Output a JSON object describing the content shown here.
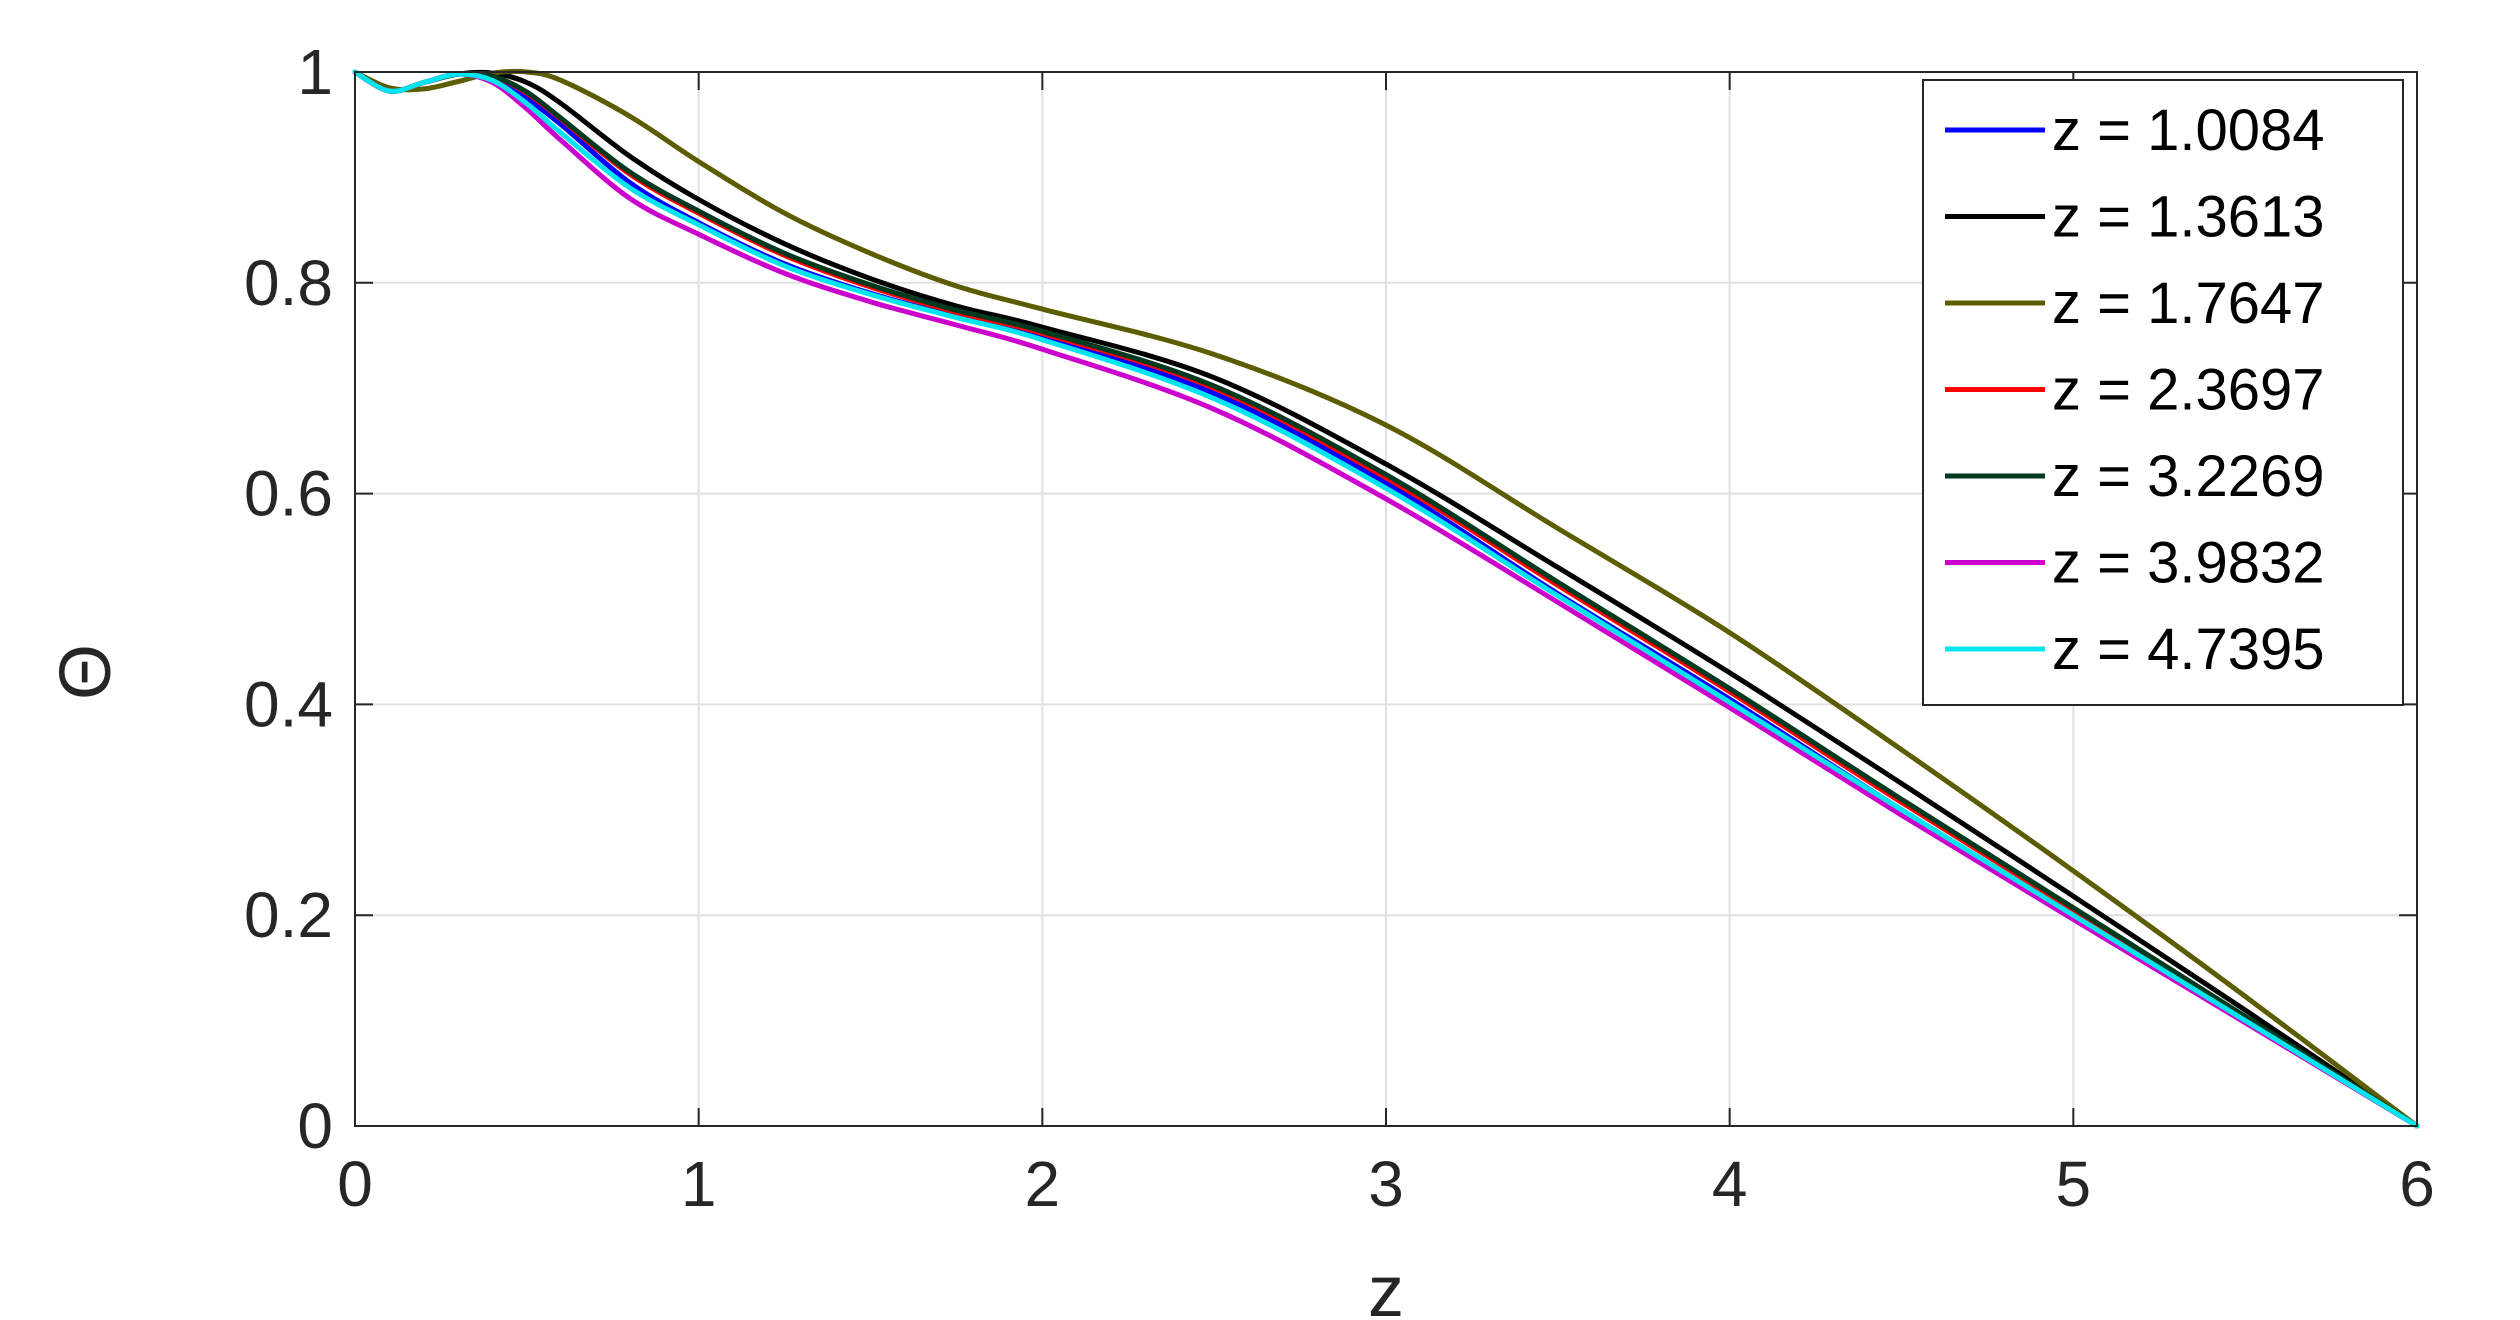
{
  "chart_data": {
    "type": "line",
    "title": "",
    "xlabel": "z",
    "ylabel": "Θ",
    "xlim": [
      0,
      6
    ],
    "ylim": [
      0,
      1
    ],
    "xticks": [
      "0",
      "1",
      "2",
      "3",
      "4",
      "5",
      "6"
    ],
    "yticks": [
      "0",
      "0.2",
      "0.4",
      "0.6",
      "0.8",
      "1"
    ],
    "grid": true,
    "legend_position": "top-right",
    "x": [
      0,
      0.1,
      0.2,
      0.3,
      0.4,
      0.5,
      0.6,
      0.8,
      1.0,
      1.25,
      1.5,
      1.75,
      2.0,
      2.5,
      3.0,
      3.5,
      4.0,
      4.5,
      5.0,
      5.5,
      6.0
    ],
    "series": [
      {
        "name": "z = 1.0084",
        "color": "#0000ff",
        "values": [
          1.0,
          0.982,
          0.99,
          0.998,
          0.995,
          0.975,
          0.95,
          0.895,
          0.857,
          0.818,
          0.79,
          0.768,
          0.748,
          0.695,
          0.61,
          0.505,
          0.405,
          0.3,
          0.2,
          0.1,
          0.0
        ]
      },
      {
        "name": "z = 1.3613",
        "color": "#000000",
        "values": [
          1.0,
          0.982,
          0.99,
          0.998,
          0.999,
          0.99,
          0.97,
          0.92,
          0.879,
          0.837,
          0.804,
          0.778,
          0.758,
          0.71,
          0.628,
          0.53,
          0.43,
          0.325,
          0.218,
          0.11,
          0.0
        ]
      },
      {
        "name": "z = 1.7647",
        "color": "#5c5c00",
        "values": [
          1.0,
          0.985,
          0.984,
          0.991,
          0.999,
          1.0,
          0.992,
          0.958,
          0.915,
          0.866,
          0.828,
          0.797,
          0.775,
          0.732,
          0.665,
          0.567,
          0.468,
          0.357,
          0.242,
          0.123,
          0.0
        ]
      },
      {
        "name": "z = 2.3697",
        "color": "#ff0000",
        "values": [
          1.0,
          0.982,
          0.99,
          0.998,
          0.996,
          0.98,
          0.955,
          0.903,
          0.866,
          0.826,
          0.796,
          0.772,
          0.752,
          0.7,
          0.615,
          0.513,
          0.412,
          0.307,
          0.205,
          0.103,
          0.0
        ]
      },
      {
        "name": "z = 3.2269",
        "color": "#003a1e",
        "values": [
          1.0,
          0.982,
          0.99,
          0.998,
          0.996,
          0.981,
          0.956,
          0.905,
          0.868,
          0.828,
          0.798,
          0.774,
          0.754,
          0.702,
          0.618,
          0.516,
          0.415,
          0.31,
          0.207,
          0.104,
          0.0
        ]
      },
      {
        "name": "z = 3.9832",
        "color": "#cc00cc",
        "values": [
          1.0,
          0.982,
          0.99,
          0.998,
          0.99,
          0.965,
          0.935,
          0.88,
          0.846,
          0.809,
          0.782,
          0.76,
          0.737,
          0.68,
          0.595,
          0.497,
          0.397,
          0.295,
          0.196,
          0.098,
          0.0
        ]
      },
      {
        "name": "z = 4.7395",
        "color": "#00e5ee",
        "values": [
          1.0,
          0.982,
          0.99,
          0.998,
          0.992,
          0.97,
          0.942,
          0.89,
          0.855,
          0.816,
          0.789,
          0.767,
          0.746,
          0.69,
          0.605,
          0.503,
          0.402,
          0.3,
          0.2,
          0.1,
          0.0
        ]
      }
    ]
  }
}
